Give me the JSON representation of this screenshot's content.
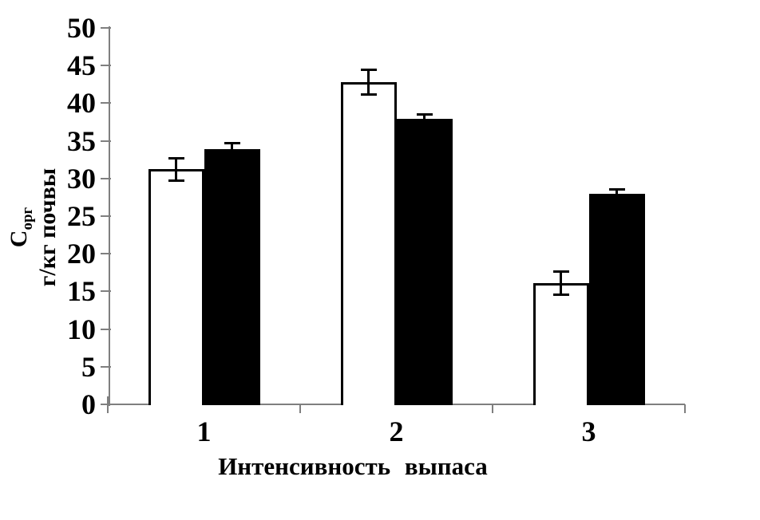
{
  "chart_data": {
    "type": "bar",
    "title": "",
    "xlabel": "Интенсивность выпаса",
    "ylabel": {
      "main": "C",
      "sub": "орг",
      "units": "г/кг почвы"
    },
    "categories": [
      "1",
      "2",
      "3"
    ],
    "series": [
      {
        "name": "open-bars",
        "fill": "#ffffff",
        "stroke": "#000000",
        "values": [
          31.2,
          42.8,
          16.1
        ],
        "errors": [
          1.5,
          1.6,
          1.5
        ]
      },
      {
        "name": "filled-bars",
        "fill": "#000000",
        "stroke": "#000000",
        "values": [
          33.9,
          37.9,
          28.0
        ],
        "errors": [
          0.8,
          0.6,
          0.6
        ]
      }
    ],
    "ylim": [
      0,
      50
    ],
    "ytick_step": 5,
    "grid": false,
    "legend": "none",
    "axis_color": "#7f7f7f",
    "error_bar_color": "#000000"
  }
}
